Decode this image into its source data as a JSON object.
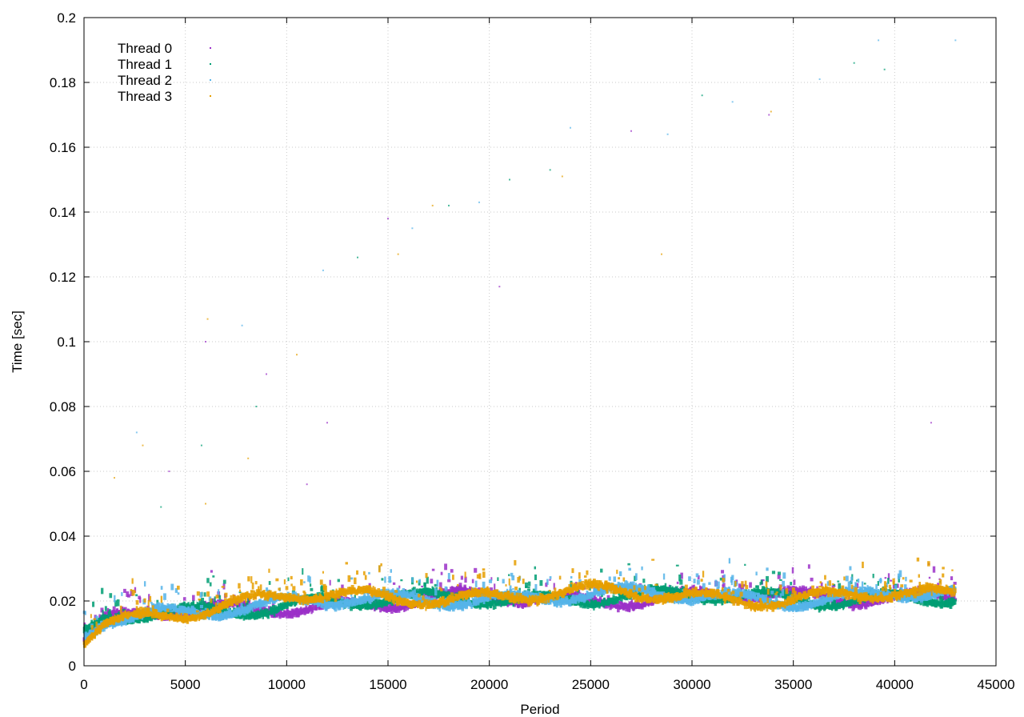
{
  "chart_data": {
    "type": "scatter",
    "title": "",
    "xlabel": "Period",
    "ylabel": "Time [sec]",
    "xlim": [
      0,
      45000
    ],
    "ylim": [
      0,
      0.2
    ],
    "x_ticks": [
      0,
      5000,
      10000,
      15000,
      20000,
      25000,
      30000,
      35000,
      40000,
      45000
    ],
    "y_ticks": [
      0,
      0.02,
      0.04,
      0.06,
      0.08,
      0.1,
      0.12,
      0.14,
      0.16,
      0.18,
      0.2
    ],
    "x_tick_labels": [
      "0",
      "5000",
      "10000",
      "15000",
      "20000",
      "25000",
      "30000",
      "35000",
      "40000",
      "45000"
    ],
    "y_tick_labels": [
      "0",
      "0.02",
      "0.04",
      "0.06",
      "0.08",
      "0.1",
      "0.12",
      "0.14",
      "0.16",
      "0.18",
      "0.2"
    ],
    "grid": true,
    "legend_position": "top-left",
    "x_max_data": 43000,
    "series": [
      {
        "name": "Thread 0",
        "color": "#9b30c8",
        "trend": [
          [
            0,
            0.008
          ],
          [
            1000,
            0.013
          ],
          [
            3000,
            0.0155
          ],
          [
            6000,
            0.017
          ],
          [
            10000,
            0.019
          ],
          [
            15000,
            0.019
          ],
          [
            20000,
            0.021
          ],
          [
            25000,
            0.021
          ],
          [
            30000,
            0.021
          ],
          [
            35000,
            0.021
          ],
          [
            40000,
            0.022
          ],
          [
            43000,
            0.022
          ]
        ],
        "outliers": [
          [
            6000,
            0.1
          ],
          [
            9000,
            0.09
          ],
          [
            12000,
            0.075
          ],
          [
            15000,
            0.138
          ],
          [
            20500,
            0.117
          ],
          [
            27000,
            0.165
          ],
          [
            33800,
            0.17
          ],
          [
            41800,
            0.075
          ],
          [
            4200,
            0.06
          ],
          [
            11000,
            0.056
          ]
        ]
      },
      {
        "name": "Thread 1",
        "color": "#009e73",
        "trend": [
          [
            0,
            0.008
          ],
          [
            1000,
            0.013
          ],
          [
            3000,
            0.0155
          ],
          [
            6000,
            0.0172
          ],
          [
            10000,
            0.0195
          ],
          [
            15000,
            0.0195
          ],
          [
            20000,
            0.021
          ],
          [
            25000,
            0.0215
          ],
          [
            30000,
            0.021
          ],
          [
            35000,
            0.021
          ],
          [
            40000,
            0.0215
          ],
          [
            43000,
            0.02
          ]
        ],
        "outliers": [
          [
            5800,
            0.068
          ],
          [
            8500,
            0.08
          ],
          [
            13500,
            0.126
          ],
          [
            18000,
            0.142
          ],
          [
            21000,
            0.15
          ],
          [
            23000,
            0.153
          ],
          [
            30500,
            0.176
          ],
          [
            38000,
            0.186
          ],
          [
            39500,
            0.184
          ],
          [
            3800,
            0.049
          ]
        ]
      },
      {
        "name": "Thread 2",
        "color": "#56b4e9",
        "trend": [
          [
            0,
            0.008
          ],
          [
            1000,
            0.0135
          ],
          [
            3000,
            0.016
          ],
          [
            6000,
            0.018
          ],
          [
            10000,
            0.0195
          ],
          [
            15000,
            0.0195
          ],
          [
            20000,
            0.0215
          ],
          [
            25000,
            0.022
          ],
          [
            30000,
            0.021
          ],
          [
            35000,
            0.021
          ],
          [
            40000,
            0.022
          ],
          [
            43000,
            0.021
          ]
        ],
        "outliers": [
          [
            2600,
            0.072
          ],
          [
            7800,
            0.105
          ],
          [
            11800,
            0.122
          ],
          [
            16200,
            0.135
          ],
          [
            19500,
            0.143
          ],
          [
            24000,
            0.166
          ],
          [
            28800,
            0.164
          ],
          [
            32000,
            0.174
          ],
          [
            36300,
            0.181
          ],
          [
            39200,
            0.193
          ],
          [
            43000,
            0.193
          ]
        ]
      },
      {
        "name": "Thread 3",
        "color": "#e69f00",
        "trend": [
          [
            0,
            0.008
          ],
          [
            1000,
            0.0135
          ],
          [
            3000,
            0.016
          ],
          [
            6000,
            0.018
          ],
          [
            10000,
            0.021
          ],
          [
            15000,
            0.021
          ],
          [
            20000,
            0.022
          ],
          [
            25000,
            0.022
          ],
          [
            30000,
            0.0215
          ],
          [
            35000,
            0.021
          ],
          [
            40000,
            0.0215
          ],
          [
            43000,
            0.021
          ]
        ],
        "outliers": [
          [
            6100,
            0.107
          ],
          [
            10500,
            0.096
          ],
          [
            15500,
            0.127
          ],
          [
            17200,
            0.142
          ],
          [
            23600,
            0.151
          ],
          [
            28500,
            0.127
          ],
          [
            33900,
            0.171
          ],
          [
            1500,
            0.058
          ],
          [
            2900,
            0.068
          ],
          [
            8100,
            0.064
          ],
          [
            6000,
            0.05
          ]
        ]
      }
    ]
  }
}
